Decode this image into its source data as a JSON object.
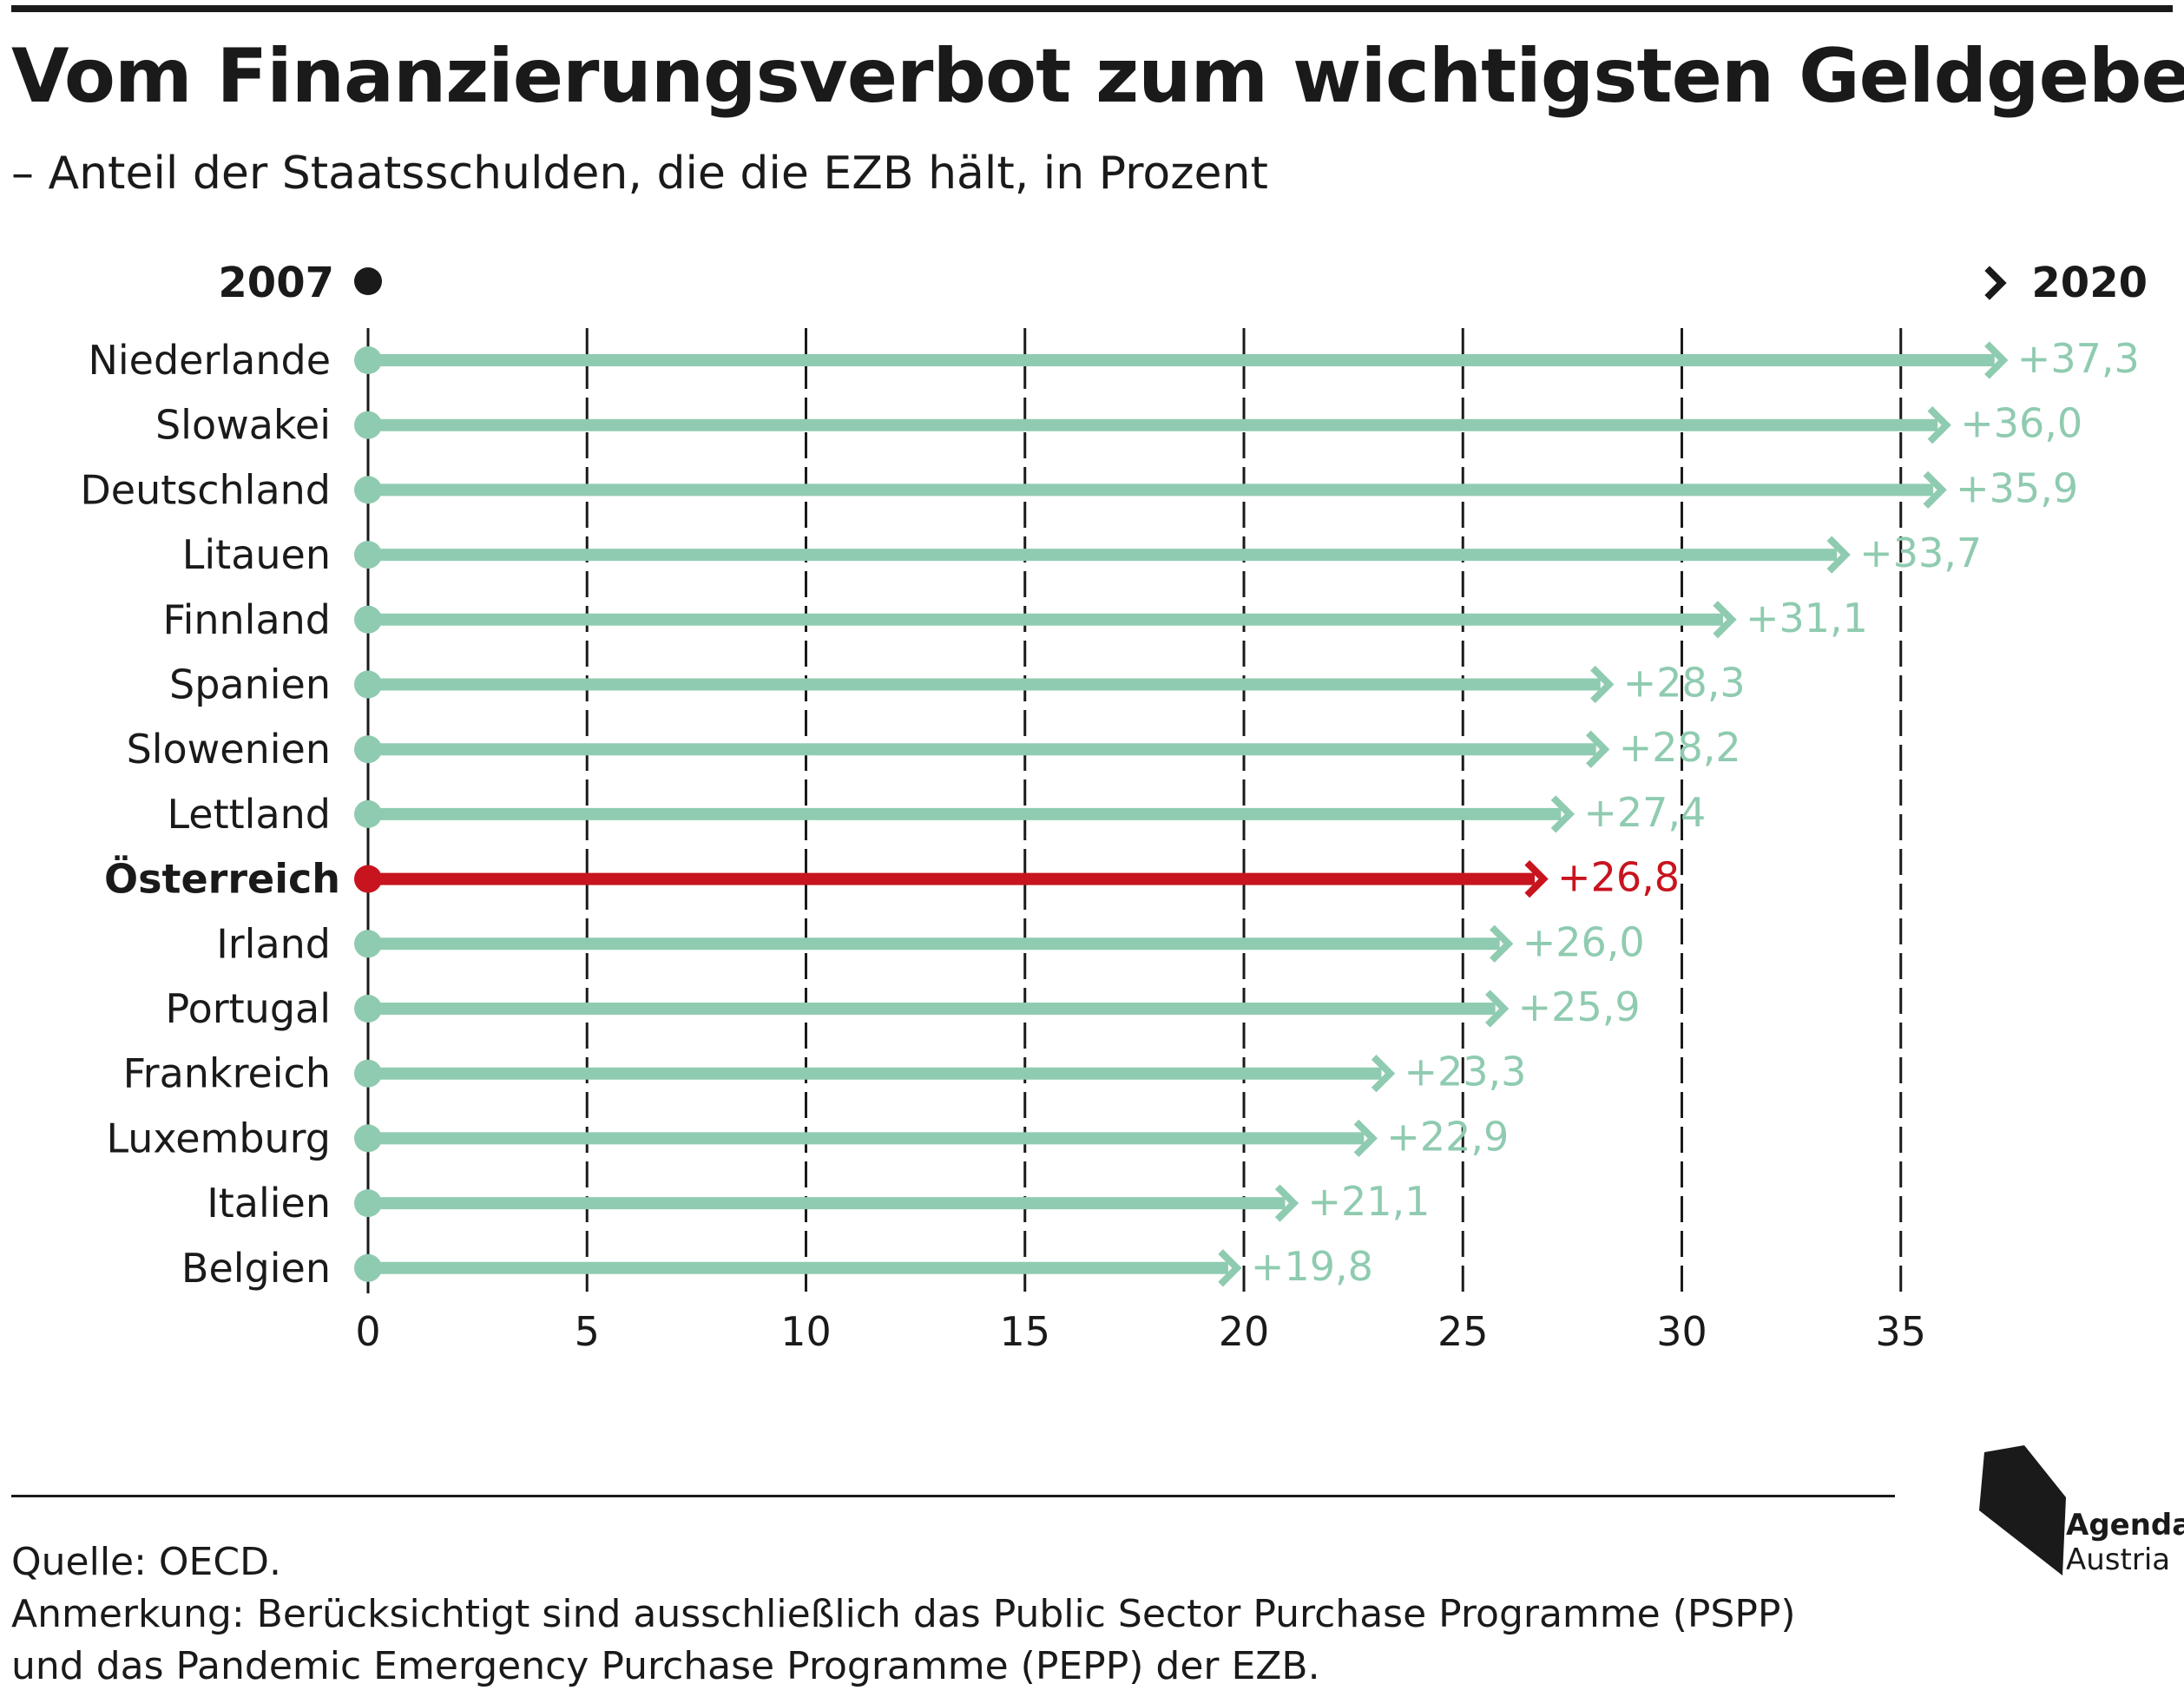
{
  "title": "Vom Finanzierungsverbot zum wichtigsten Geldgeber",
  "subtitle": "– Anteil der Staatsschulden, die die EZB hält, in Prozent",
  "legend": {
    "start_label": "2007",
    "end_label": "2020"
  },
  "colors": {
    "default": "#8fcbb0",
    "highlight": "#c8141e",
    "text": "#1a1a1a"
  },
  "chart_data": {
    "type": "arrow-bar",
    "categories": [
      "Niederlande",
      "Slowakei",
      "Deutschland",
      "Litauen",
      "Finnland",
      "Spanien",
      "Slowenien",
      "Lettland",
      "Österreich",
      "Irland",
      "Portugal",
      "Frankreich",
      "Luxemburg",
      "Italien",
      "Belgien"
    ],
    "start_values": [
      0,
      0,
      0,
      0,
      0,
      0,
      0,
      0,
      0,
      0,
      0,
      0,
      0,
      0,
      0
    ],
    "values": [
      37.3,
      36.0,
      35.9,
      33.7,
      31.1,
      28.3,
      28.2,
      27.4,
      26.8,
      26.0,
      25.9,
      23.3,
      22.9,
      21.1,
      19.8
    ],
    "value_labels": [
      "+37,3",
      "+36,0",
      "+35,9",
      "+33,7",
      "+31,1",
      "+28,3",
      "+28,2",
      "+27,4",
      "+26,8",
      "+26,0",
      "+25,9",
      "+23,3",
      "+22,9",
      "+21,1",
      "+19,8"
    ],
    "highlight": "Österreich",
    "xlim": [
      0,
      37.3
    ],
    "xticks": [
      0,
      5,
      10,
      15,
      20,
      25,
      30,
      35
    ],
    "xtick_labels": [
      "0",
      "5",
      "10",
      "15",
      "20",
      "25",
      "30",
      "35"
    ],
    "grid": "vertical-dashed"
  },
  "footer": {
    "source": "Quelle: OECD.",
    "note_line1": "Anmerkung: Berücksichtigt sind ausschließlich das Public Sector Purchase Programme (PSPP)",
    "note_line2": "und das Pandemic Emergency Purchase Programme (PEPP) der EZB."
  },
  "logo": {
    "line1": "Agenda",
    "line2": "Austria"
  }
}
